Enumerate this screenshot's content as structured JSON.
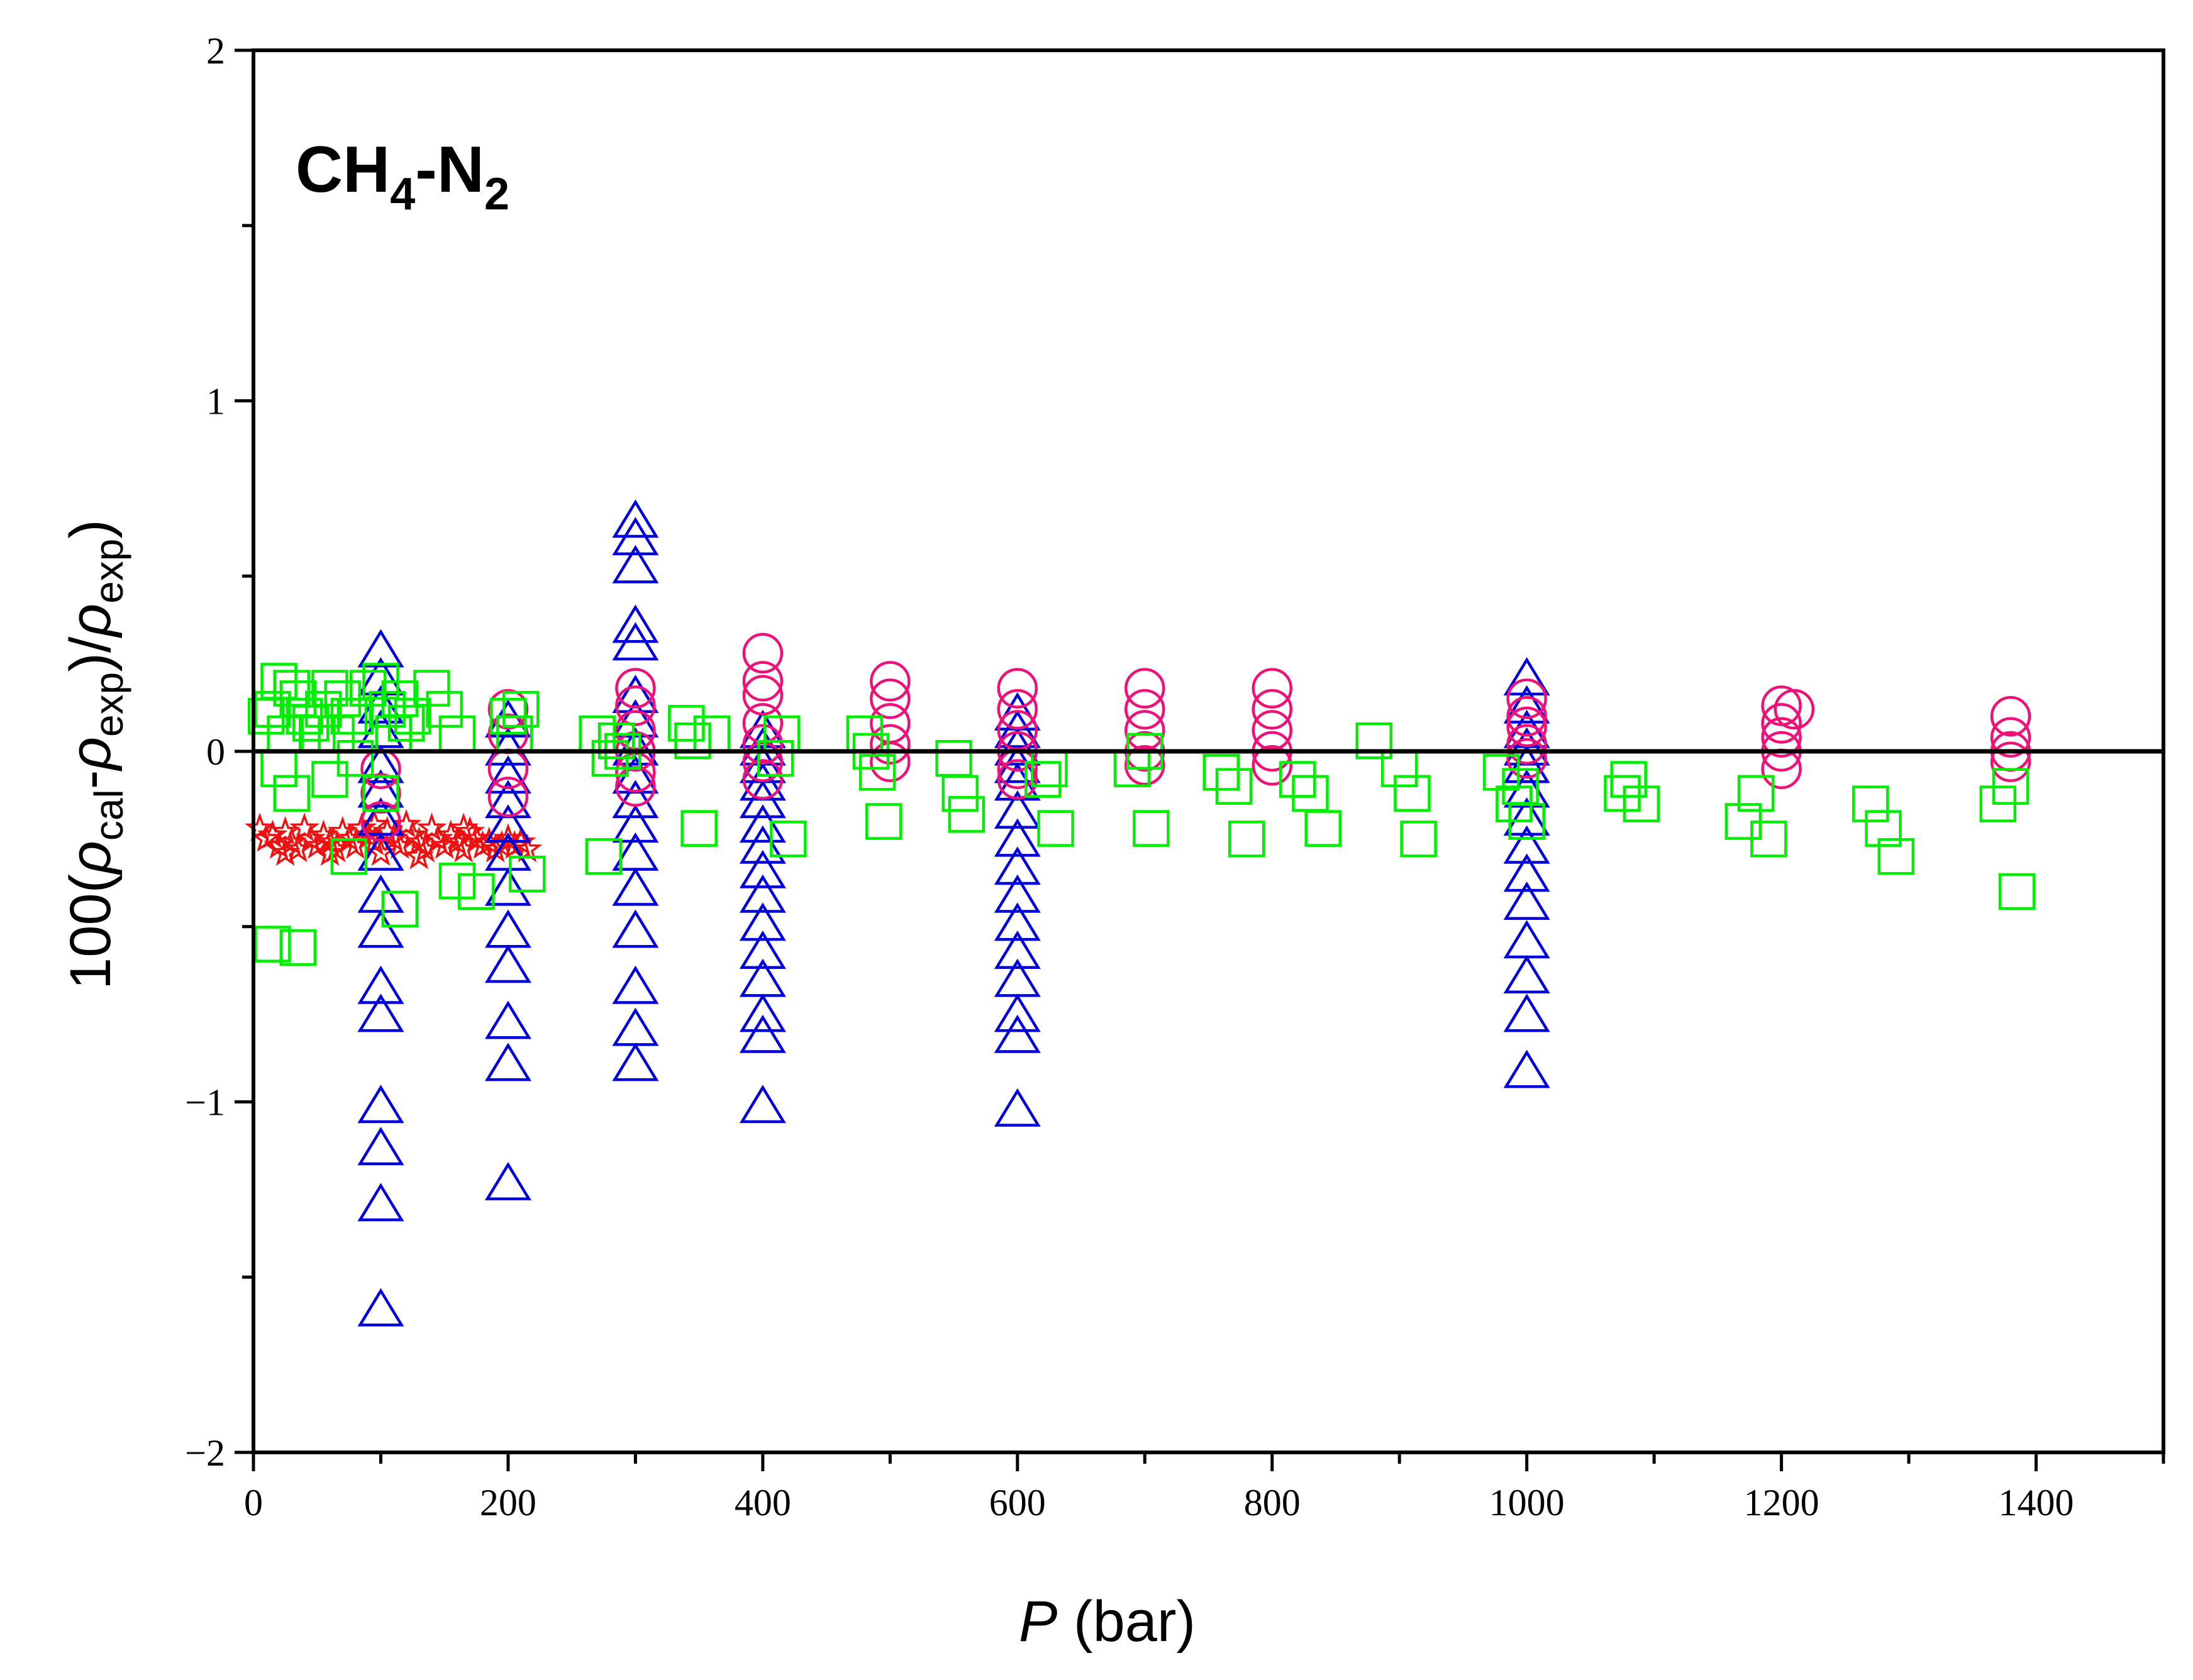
{
  "chart_data": {
    "type": "scatter",
    "annotation": {
      "base1": "CH",
      "sub1": "4",
      "base2": "-N",
      "sub2": "2"
    },
    "xlabel": {
      "italic": "P",
      "rest": " (bar)"
    },
    "ylabel": {
      "p1": "100(",
      "rho1": "ρ",
      "s1": "cal",
      "p2": "-",
      "rho2": "ρ",
      "s2": "exp",
      "p3": ")/",
      "rho3": "ρ",
      "s3": "exp",
      "p4": ")"
    },
    "xlim": [
      0,
      1500
    ],
    "ylim": [
      -2,
      2
    ],
    "x_ticks": [
      0,
      200,
      400,
      600,
      800,
      1000,
      1200,
      1400
    ],
    "x_tick_labels": [
      "0",
      "200",
      "400",
      "600",
      "800",
      "1000",
      "1200",
      "1400"
    ],
    "y_ticks": [
      -2,
      -1,
      0,
      1,
      2
    ],
    "y_tick_labels": [
      "−2",
      "−1",
      "0",
      "1",
      "2"
    ],
    "zero_line": 0,
    "grid": false,
    "colors": {
      "stars": "#ee1111",
      "triangles": "#0000dd",
      "circles": "#ee1177",
      "squares": "#00ee00",
      "axes": "#000000"
    },
    "series": [
      {
        "marker": "star",
        "color": "#ee1111",
        "points": [
          [
            5,
            -0.22
          ],
          [
            10,
            -0.25
          ],
          [
            15,
            -0.24
          ],
          [
            20,
            -0.27
          ],
          [
            25,
            -0.23
          ],
          [
            30,
            -0.26
          ],
          [
            35,
            -0.28
          ],
          [
            40,
            -0.22
          ],
          [
            45,
            -0.25
          ],
          [
            50,
            -0.27
          ],
          [
            55,
            -0.24
          ],
          [
            60,
            -0.26
          ],
          [
            65,
            -0.28
          ],
          [
            70,
            -0.23
          ],
          [
            75,
            -0.25
          ],
          [
            80,
            -0.27
          ],
          [
            85,
            -0.22
          ],
          [
            90,
            -0.24
          ],
          [
            95,
            -0.26
          ],
          [
            100,
            -0.29
          ],
          [
            105,
            -0.23
          ],
          [
            110,
            -0.25
          ],
          [
            115,
            -0.27
          ],
          [
            120,
            -0.21
          ],
          [
            125,
            -0.24
          ],
          [
            130,
            -0.26
          ],
          [
            135,
            -0.28
          ],
          [
            140,
            -0.22
          ],
          [
            145,
            -0.25
          ],
          [
            150,
            -0.27
          ],
          [
            155,
            -0.24
          ],
          [
            160,
            -0.26
          ],
          [
            165,
            -0.28
          ],
          [
            170,
            -0.23
          ],
          [
            175,
            -0.25
          ],
          [
            180,
            -0.27
          ],
          [
            185,
            -0.26
          ],
          [
            190,
            -0.28
          ],
          [
            195,
            -0.27
          ],
          [
            200,
            -0.25
          ],
          [
            205,
            -0.27
          ],
          [
            210,
            -0.26
          ],
          [
            215,
            -0.28
          ],
          [
            25,
            -0.29
          ],
          [
            60,
            -0.29
          ],
          [
            95,
            -0.21
          ],
          [
            130,
            -0.3
          ],
          [
            165,
            -0.22
          ]
        ]
      },
      {
        "marker": "triangle",
        "color": "#0000dd",
        "points": [
          [
            100,
            0.28
          ],
          [
            100,
            0.2
          ],
          [
            100,
            0.12
          ],
          [
            100,
            0.05
          ],
          [
            100,
            -0.05
          ],
          [
            100,
            -0.12
          ],
          [
            100,
            -0.2
          ],
          [
            100,
            -0.3
          ],
          [
            100,
            -0.42
          ],
          [
            100,
            -0.52
          ],
          [
            100,
            -0.68
          ],
          [
            100,
            -0.76
          ],
          [
            100,
            -1.02
          ],
          [
            100,
            -1.14
          ],
          [
            100,
            -1.3
          ],
          [
            100,
            -1.6
          ],
          [
            200,
            0.08
          ],
          [
            200,
            0.0
          ],
          [
            200,
            -0.08
          ],
          [
            200,
            -0.15
          ],
          [
            200,
            -0.22
          ],
          [
            200,
            -0.3
          ],
          [
            200,
            -0.4
          ],
          [
            200,
            -0.52
          ],
          [
            200,
            -0.62
          ],
          [
            200,
            -0.78
          ],
          [
            200,
            -0.9
          ],
          [
            200,
            -1.24
          ],
          [
            300,
            0.65
          ],
          [
            300,
            0.6
          ],
          [
            300,
            0.52
          ],
          [
            300,
            0.35
          ],
          [
            300,
            0.3
          ],
          [
            300,
            0.15
          ],
          [
            300,
            0.08
          ],
          [
            300,
            0.0
          ],
          [
            300,
            -0.08
          ],
          [
            300,
            -0.15
          ],
          [
            300,
            -0.22
          ],
          [
            300,
            -0.3
          ],
          [
            300,
            -0.4
          ],
          [
            300,
            -0.52
          ],
          [
            300,
            -0.68
          ],
          [
            300,
            -0.8
          ],
          [
            300,
            -0.9
          ],
          [
            400,
            0.05
          ],
          [
            400,
            0.0
          ],
          [
            400,
            -0.05
          ],
          [
            400,
            -0.1
          ],
          [
            400,
            -0.15
          ],
          [
            400,
            -0.22
          ],
          [
            400,
            -0.28
          ],
          [
            400,
            -0.35
          ],
          [
            400,
            -0.42
          ],
          [
            400,
            -0.5
          ],
          [
            400,
            -0.58
          ],
          [
            400,
            -0.66
          ],
          [
            400,
            -0.76
          ],
          [
            400,
            -0.82
          ],
          [
            400,
            -1.02
          ],
          [
            600,
            0.1
          ],
          [
            600,
            0.05
          ],
          [
            600,
            0.0
          ],
          [
            600,
            -0.05
          ],
          [
            600,
            -0.1
          ],
          [
            600,
            -0.18
          ],
          [
            600,
            -0.26
          ],
          [
            600,
            -0.34
          ],
          [
            600,
            -0.42
          ],
          [
            600,
            -0.5
          ],
          [
            600,
            -0.58
          ],
          [
            600,
            -0.66
          ],
          [
            600,
            -0.76
          ],
          [
            600,
            -0.82
          ],
          [
            600,
            -1.03
          ],
          [
            1000,
            0.2
          ],
          [
            1000,
            0.12
          ],
          [
            1000,
            0.05
          ],
          [
            1000,
            0.0
          ],
          [
            1000,
            -0.05
          ],
          [
            1000,
            -0.12
          ],
          [
            1000,
            -0.2
          ],
          [
            1000,
            -0.28
          ],
          [
            1000,
            -0.36
          ],
          [
            1000,
            -0.44
          ],
          [
            1000,
            -0.55
          ],
          [
            1000,
            -0.65
          ],
          [
            1000,
            -0.76
          ],
          [
            1000,
            -0.92
          ]
        ]
      },
      {
        "marker": "circle",
        "color": "#ee1177",
        "points": [
          [
            100,
            -0.05
          ],
          [
            100,
            -0.12
          ],
          [
            100,
            -0.2
          ],
          [
            200,
            0.12
          ],
          [
            200,
            0.05
          ],
          [
            200,
            -0.05
          ],
          [
            200,
            -0.13
          ],
          [
            300,
            0.18
          ],
          [
            300,
            0.13
          ],
          [
            300,
            0.06
          ],
          [
            300,
            0.0
          ],
          [
            300,
            -0.06
          ],
          [
            300,
            -0.1
          ],
          [
            400,
            0.28
          ],
          [
            400,
            0.2
          ],
          [
            400,
            0.16
          ],
          [
            400,
            0.08
          ],
          [
            400,
            0.02
          ],
          [
            400,
            -0.03
          ],
          [
            400,
            -0.08
          ],
          [
            500,
            0.2
          ],
          [
            500,
            0.15
          ],
          [
            500,
            0.08
          ],
          [
            500,
            0.02
          ],
          [
            500,
            -0.03
          ],
          [
            600,
            0.18
          ],
          [
            600,
            0.12
          ],
          [
            600,
            0.06
          ],
          [
            600,
            0.0
          ],
          [
            600,
            -0.05
          ],
          [
            600,
            -0.08
          ],
          [
            700,
            0.18
          ],
          [
            700,
            0.12
          ],
          [
            700,
            0.06
          ],
          [
            700,
            0.0
          ],
          [
            700,
            -0.04
          ],
          [
            800,
            0.18
          ],
          [
            800,
            0.12
          ],
          [
            800,
            0.06
          ],
          [
            800,
            0.0
          ],
          [
            800,
            -0.04
          ],
          [
            1000,
            0.15
          ],
          [
            1000,
            0.1
          ],
          [
            1000,
            0.07
          ],
          [
            1000,
            0.02
          ],
          [
            1000,
            -0.02
          ],
          [
            1200,
            0.13
          ],
          [
            1200,
            0.08
          ],
          [
            1200,
            0.04
          ],
          [
            1200,
            0.0
          ],
          [
            1200,
            -0.05
          ],
          [
            1210,
            0.12
          ],
          [
            1380,
            0.1
          ],
          [
            1380,
            0.04
          ],
          [
            1380,
            0.0
          ],
          [
            1380,
            -0.03
          ]
        ]
      },
      {
        "marker": "square",
        "color": "#00ee00",
        "points": [
          [
            10,
            0.1
          ],
          [
            15,
            0.12
          ],
          [
            20,
            0.2
          ],
          [
            25,
            0.05
          ],
          [
            30,
            0.18
          ],
          [
            35,
            0.15
          ],
          [
            40,
            0.1
          ],
          [
            45,
            0.08
          ],
          [
            50,
            0.05
          ],
          [
            55,
            0.12
          ],
          [
            60,
            0.18
          ],
          [
            65,
            0.05
          ],
          [
            70,
            0.15
          ],
          [
            75,
            0.1
          ],
          [
            80,
            0.1
          ],
          [
            90,
            0.18
          ],
          [
            100,
            0.2
          ],
          [
            105,
            0.12
          ],
          [
            110,
            0.05
          ],
          [
            115,
            0.15
          ],
          [
            120,
            0.08
          ],
          [
            125,
            0.1
          ],
          [
            140,
            0.18
          ],
          [
            150,
            0.12
          ],
          [
            160,
            0.05
          ],
          [
            20,
            -0.05
          ],
          [
            30,
            -0.12
          ],
          [
            60,
            -0.08
          ],
          [
            80,
            -0.02
          ],
          [
            100,
            -0.12
          ],
          [
            15,
            -0.55
          ],
          [
            35,
            -0.56
          ],
          [
            75,
            -0.3
          ],
          [
            115,
            -0.45
          ],
          [
            160,
            -0.37
          ],
          [
            175,
            -0.4
          ],
          [
            200,
            0.1
          ],
          [
            205,
            0.05
          ],
          [
            210,
            0.12
          ],
          [
            215,
            -0.35
          ],
          [
            270,
            0.05
          ],
          [
            275,
            -0.3
          ],
          [
            280,
            -0.02
          ],
          [
            285,
            0.03
          ],
          [
            290,
            0.0
          ],
          [
            340,
            0.08
          ],
          [
            345,
            0.03
          ],
          [
            350,
            -0.22
          ],
          [
            360,
            0.05
          ],
          [
            410,
            -0.02
          ],
          [
            415,
            0.05
          ],
          [
            420,
            -0.25
          ],
          [
            480,
            0.05
          ],
          [
            485,
            0.0
          ],
          [
            490,
            -0.06
          ],
          [
            495,
            -0.2
          ],
          [
            550,
            -0.02
          ],
          [
            555,
            -0.12
          ],
          [
            560,
            -0.18
          ],
          [
            620,
            -0.08
          ],
          [
            625,
            -0.05
          ],
          [
            630,
            -0.22
          ],
          [
            690,
            -0.05
          ],
          [
            700,
            0.0
          ],
          [
            705,
            -0.22
          ],
          [
            760,
            -0.06
          ],
          [
            770,
            -0.1
          ],
          [
            780,
            -0.25
          ],
          [
            820,
            -0.08
          ],
          [
            830,
            -0.12
          ],
          [
            840,
            -0.22
          ],
          [
            880,
            0.03
          ],
          [
            900,
            -0.05
          ],
          [
            910,
            -0.12
          ],
          [
            915,
            -0.25
          ],
          [
            980,
            -0.06
          ],
          [
            990,
            -0.15
          ],
          [
            995,
            -0.1
          ],
          [
            1000,
            -0.2
          ],
          [
            1075,
            -0.12
          ],
          [
            1080,
            -0.08
          ],
          [
            1090,
            -0.15
          ],
          [
            1170,
            -0.2
          ],
          [
            1180,
            -0.12
          ],
          [
            1190,
            -0.25
          ],
          [
            1270,
            -0.15
          ],
          [
            1280,
            -0.22
          ],
          [
            1290,
            -0.3
          ],
          [
            1370,
            -0.15
          ],
          [
            1380,
            -0.1
          ],
          [
            1385,
            -0.4
          ]
        ]
      }
    ]
  }
}
